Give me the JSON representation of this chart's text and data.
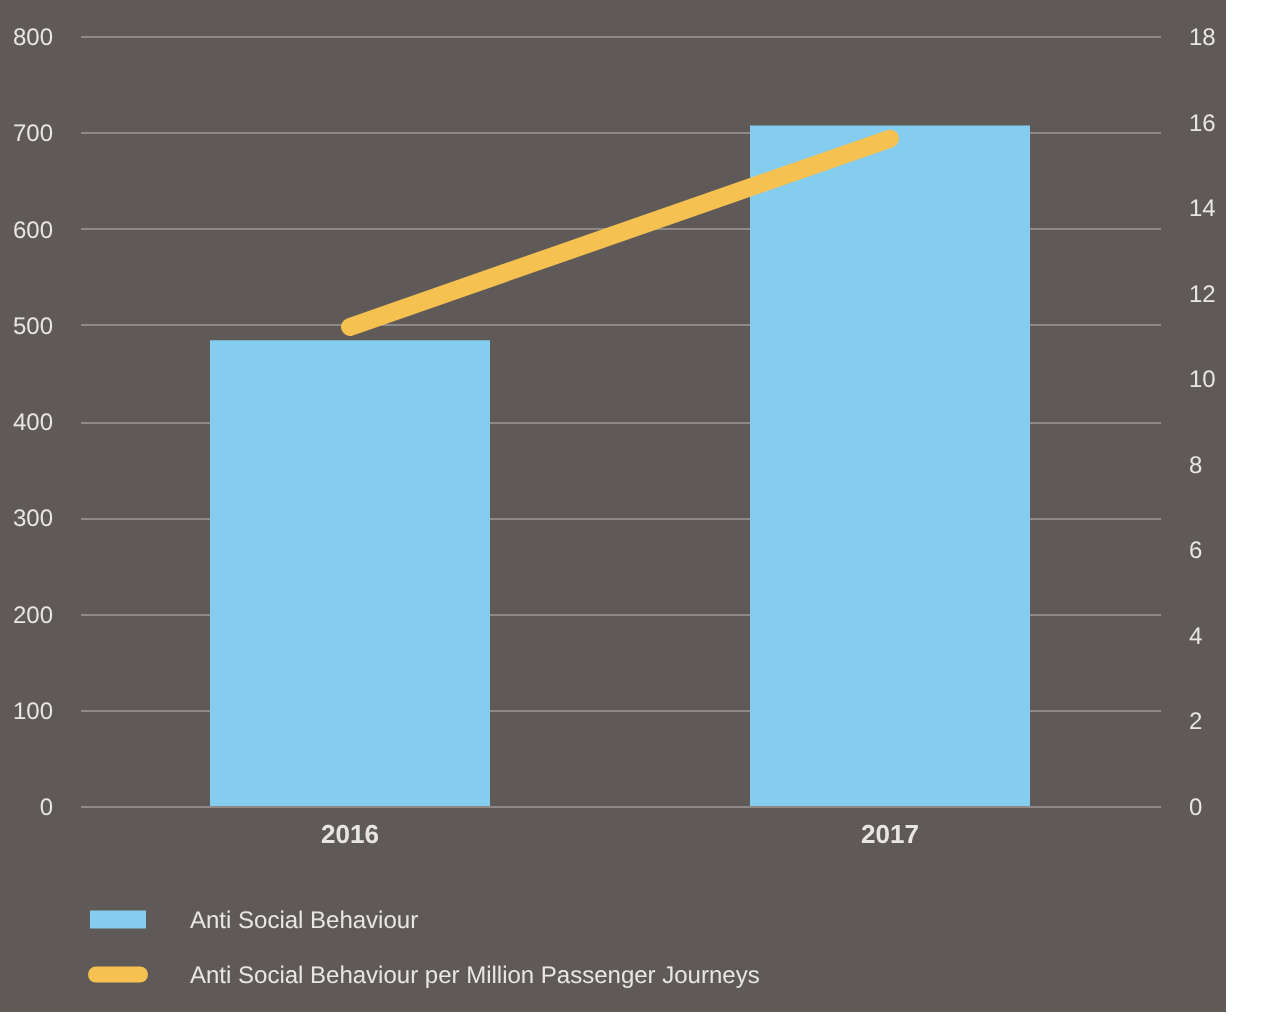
{
  "chart_data": {
    "type": "bar",
    "categories": [
      "2016",
      "2017"
    ],
    "series": [
      {
        "name": "Anti Social Behaviour",
        "color": "#85cdee",
        "values": [
          484,
          707
        ]
      },
      {
        "name": "Anti Social Behaviour per Million Passenger Journeys",
        "type": "line",
        "axis": "y2",
        "color": "#f5c151",
        "values": [
          11.2,
          15.6
        ]
      }
    ],
    "ylim": [
      0,
      800
    ],
    "yticks": [
      0,
      100,
      200,
      300,
      400,
      500,
      600,
      700,
      800
    ],
    "y2lim": [
      0,
      18
    ],
    "y2ticks": [
      0,
      2,
      4,
      6,
      8,
      10,
      12,
      14,
      16,
      18
    ],
    "grid": "y",
    "legend": "bottom",
    "marker": "none",
    "line_style": "solid"
  }
}
